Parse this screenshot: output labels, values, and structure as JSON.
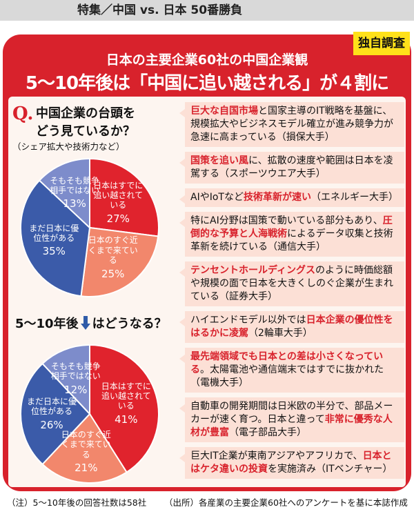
{
  "header": "特集／中国 vs. 日本 50番勝負",
  "badge": "独自調査",
  "title": "日本の主要企業60社の中国企業観",
  "headline": "5〜10年後は「中国に追い越される」が４割に",
  "question": {
    "mark": "Q.",
    "lines": [
      "中国企業の台頭を",
      "どう見ているか？"
    ],
    "note": "（シェア拡大や技術力など）"
  },
  "question2": {
    "before": "5〜10年後",
    "after": "はどうなる？"
  },
  "chart_data": [
    {
      "type": "pie",
      "categories": [
        "日本はすでに追い越されている",
        "日本のすぐ近くまで来ている",
        "まだ日本に優位性がある",
        "そもそも競争相手ではない"
      ],
      "values": [
        27,
        25,
        35,
        13
      ],
      "value_labels": [
        "27%",
        "25%",
        "35%",
        "13%"
      ],
      "colors": [
        "#e0232d",
        "#f2876c",
        "#3b5ba9",
        "#7d8ccb"
      ]
    },
    {
      "type": "pie",
      "categories": [
        "日本はすでに追い越されている",
        "日本のすぐ近くまで来ている",
        "まだ日本に優位性がある",
        "そもそも競争相手ではない"
      ],
      "values": [
        41,
        21,
        26,
        12
      ],
      "value_labels": [
        "41%",
        "21%",
        "26%",
        "12%"
      ],
      "colors": [
        "#e0232d",
        "#f2876c",
        "#3b5ba9",
        "#7d8ccb"
      ]
    }
  ],
  "quotes": [
    {
      "parts": [
        {
          "text": "巨大な自国市場",
          "highlight": true
        },
        {
          "text": "と国家主導のIT戦略を基盤に、規模拡大やビジネスモデル確立が進み競争力が急速に高まっている（損保大手）"
        }
      ]
    },
    {
      "parts": [
        {
          "text": "国策を追い風",
          "highlight": true
        },
        {
          "text": "に、拡散の速度や範囲は日本を凌駕する（スポーツウエア大手）"
        }
      ]
    },
    {
      "parts": [
        {
          "text": "AIやIoTなど"
        },
        {
          "text": "技術革新が速い",
          "highlight": true
        },
        {
          "text": "（エネルギー大手）"
        }
      ]
    },
    {
      "parts": [
        {
          "text": "特にAI分野は国策で動いている部分もあり、"
        },
        {
          "text": "圧倒的な予算と人海戦術",
          "highlight": true
        },
        {
          "text": "によるデータ収集と技術革新を続けている（通信大手）"
        }
      ]
    },
    {
      "parts": [
        {
          "text": "テンセントホールディングス",
          "highlight": true
        },
        {
          "text": "のように時価総額や規模の面で日本を大きくしのぐ企業が生まれている（証券大手）"
        }
      ]
    },
    {
      "parts": [
        {
          "text": "ハイエンドモデル以外では"
        },
        {
          "text": "日本企業の優位性をはるかに凌駕",
          "highlight": true
        },
        {
          "text": "（2輪車大手）"
        }
      ]
    },
    {
      "parts": [
        {
          "text": "最先端領域でも日本との差は小さくなっている",
          "highlight": true
        },
        {
          "text": "。太陽電池や通信端末ではすでに抜かれた（電機大手）"
        }
      ]
    },
    {
      "parts": [
        {
          "text": "自動車の開発期間は日米欧の半分で、部品メーカーが速く育つ。日本と違って"
        },
        {
          "text": "非常に優秀な人材が豊富",
          "highlight": true
        },
        {
          "text": "（電子部品大手）"
        }
      ]
    },
    {
      "parts": [
        {
          "text": "巨大IT企業が東南アジアやアフリカで、"
        },
        {
          "text": "日本とはケタ違いの投資",
          "highlight": true
        },
        {
          "text": "を実施済み（ITベンチャー）"
        }
      ]
    }
  ],
  "footnotes": [
    "（注）5〜10年後の回答社数は58社",
    "（出所）各産業の主要企業60社へのアンケートを基に本誌作成"
  ]
}
